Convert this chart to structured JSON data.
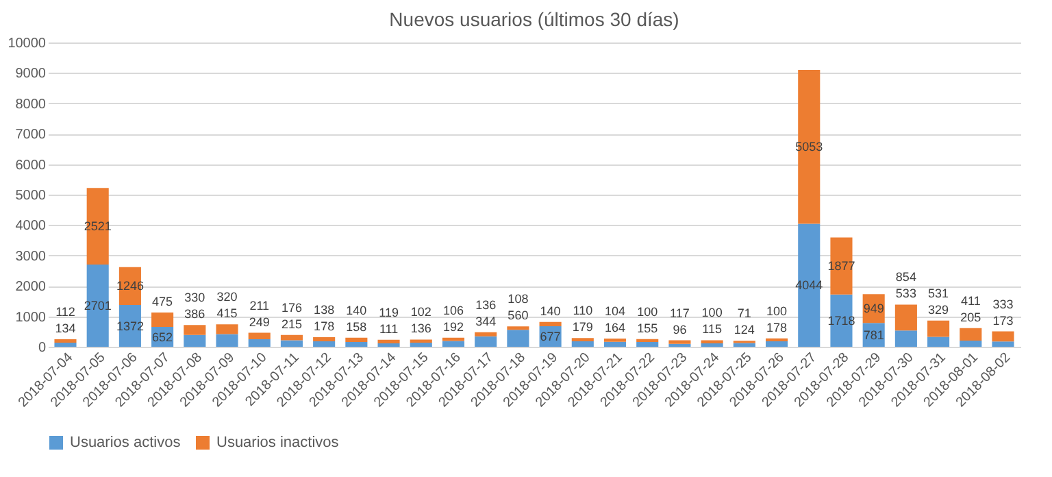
{
  "chart_data": {
    "type": "bar",
    "title": "Nuevos usuarios (últimos 30 días)",
    "stacked": true,
    "data_labels": true,
    "categories": [
      "2018-07-04",
      "2018-07-05",
      "2018-07-06",
      "2018-07-07",
      "2018-07-08",
      "2018-07-09",
      "2018-07-10",
      "2018-07-11",
      "2018-07-12",
      "2018-07-13",
      "2018-07-14",
      "2018-07-15",
      "2018-07-16",
      "2018-07-17",
      "2018-07-18",
      "2018-07-19",
      "2018-07-20",
      "2018-07-21",
      "2018-07-22",
      "2018-07-23",
      "2018-07-24",
      "2018-07-25",
      "2018-07-26",
      "2018-07-27",
      "2018-07-28",
      "2018-07-29",
      "2018-07-30",
      "2018-07-31",
      "2018-08-01",
      "2018-08-02"
    ],
    "series": [
      {
        "name": "Usuarios activos",
        "color": "#5b9bd5",
        "values": [
          134,
          2701,
          1372,
          652,
          386,
          415,
          249,
          215,
          178,
          158,
          111,
          136,
          192,
          344,
          560,
          677,
          179,
          164,
          155,
          96,
          115,
          124,
          178,
          4044,
          1718,
          781,
          533,
          329,
          205,
          173
        ]
      },
      {
        "name": "Usuarios inactivos",
        "color": "#ed7d31",
        "values": [
          112,
          2521,
          1246,
          475,
          330,
          320,
          211,
          176,
          138,
          140,
          119,
          102,
          106,
          136,
          108,
          140,
          110,
          104,
          100,
          117,
          100,
          71,
          100,
          5053,
          1877,
          949,
          854,
          531,
          411,
          333
        ]
      }
    ],
    "ylim": [
      0,
      10000
    ],
    "yticks": [
      0,
      1000,
      2000,
      3000,
      4000,
      5000,
      6000,
      7000,
      8000,
      9000,
      10000
    ],
    "grid": "y",
    "legend": "bottom"
  }
}
